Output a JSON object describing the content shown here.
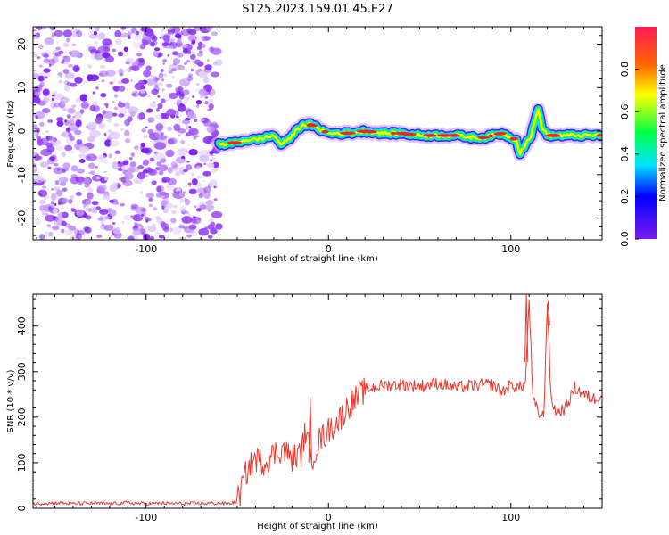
{
  "title": "S125.2023.159.01.45.E27",
  "colors": {
    "snr_line": "#e8392f",
    "noise_purple": "#7a1cf0",
    "colorbar": [
      "#7a1cf0",
      "#0000ff",
      "#00e5ff",
      "#00ff44",
      "#ffff00",
      "#ff6600",
      "#ff1a55"
    ]
  },
  "chart_data": [
    {
      "type": "heatmap",
      "title": "S125.2023.159.01.45.E27",
      "xlabel": "Height of straight line (km)",
      "ylabel": "Frequency (Hz)",
      "xlim": [
        -162,
        150
      ],
      "ylim": [
        -25,
        24
      ],
      "x_ticks": [
        -100,
        0,
        100
      ],
      "x_tick_labels": [
        "-100",
        "0",
        "100"
      ],
      "y_ticks": [
        -20,
        -10,
        0,
        10,
        20
      ],
      "y_tick_labels": [
        "-20",
        "-10",
        "0",
        "10",
        "20"
      ],
      "grid": false,
      "colorbar": {
        "label": "Normalized spectral amplitude",
        "range": [
          0,
          1
        ],
        "ticks": [
          0,
          0.2,
          0.4,
          0.6,
          0.8
        ],
        "tick_labels": [
          "0.0",
          "0.2",
          "0.4",
          "0.6",
          "0.8"
        ]
      },
      "noise_region_x": [
        -162,
        -60
      ],
      "ridge": {
        "x": [
          -60,
          -55,
          -50,
          -45,
          -40,
          -35,
          -30,
          -26,
          -22,
          -18,
          -14,
          -10,
          -5,
          0,
          10,
          20,
          30,
          40,
          50,
          60,
          70,
          80,
          85,
          90,
          95,
          100,
          103,
          105,
          108,
          111,
          113,
          115,
          117,
          120,
          130,
          140,
          150
        ],
        "y": [
          -3,
          -3,
          -2.5,
          -2,
          -2,
          -1.5,
          -1,
          -3,
          -2,
          0,
          1.5,
          1.5,
          0.5,
          -0.5,
          -0.5,
          0,
          -0.5,
          -0.5,
          -1,
          -1,
          -1,
          -1.5,
          -1.5,
          -1,
          -0.5,
          -1.5,
          -2,
          -5,
          -3,
          -1,
          2,
          5,
          1,
          -1,
          -1,
          -1,
          -1
        ]
      }
    },
    {
      "type": "line",
      "xlabel": "Height of straight line (km)",
      "ylabel": "SNR (10 * v/v)",
      "xlim": [
        -162,
        150
      ],
      "ylim": [
        0,
        470
      ],
      "x_ticks": [
        -100,
        0,
        100
      ],
      "x_tick_labels": [
        "-100",
        "0",
        "100"
      ],
      "y_ticks": [
        0,
        100,
        200,
        300,
        400
      ],
      "y_tick_labels": [
        "0",
        "100",
        "200",
        "300",
        "400"
      ],
      "grid": false,
      "series": [
        {
          "x": [
            -162,
            -150,
            -140,
            -130,
            -120,
            -110,
            -100,
            -90,
            -80,
            -70,
            -60,
            -55,
            -50,
            -48,
            -45,
            -40,
            -35,
            -30,
            -25,
            -20,
            -15,
            -12,
            -10,
            -5,
            0,
            5,
            10,
            15,
            20,
            25,
            30,
            40,
            50,
            60,
            70,
            80,
            90,
            95,
            100,
            105,
            108,
            110,
            112,
            115,
            118,
            120,
            122,
            125,
            130,
            135,
            140,
            145,
            150
          ],
          "y": [
            10,
            12,
            10,
            11,
            10,
            12,
            10,
            11,
            10,
            11,
            11,
            10,
            15,
            40,
            80,
            110,
            100,
            120,
            130,
            110,
            120,
            180,
            100,
            150,
            170,
            190,
            220,
            240,
            260,
            265,
            270,
            272,
            268,
            275,
            265,
            270,
            272,
            255,
            270,
            265,
            275,
            460,
            240,
            210,
            200,
            455,
            240,
            210,
            220,
            265,
            250,
            240,
            250
          ]
        }
      ],
      "spikes": [
        {
          "x": 108.5,
          "y": 470
        },
        {
          "x": 120.5,
          "y": 455
        },
        {
          "x": -10,
          "y": 245
        }
      ]
    }
  ]
}
